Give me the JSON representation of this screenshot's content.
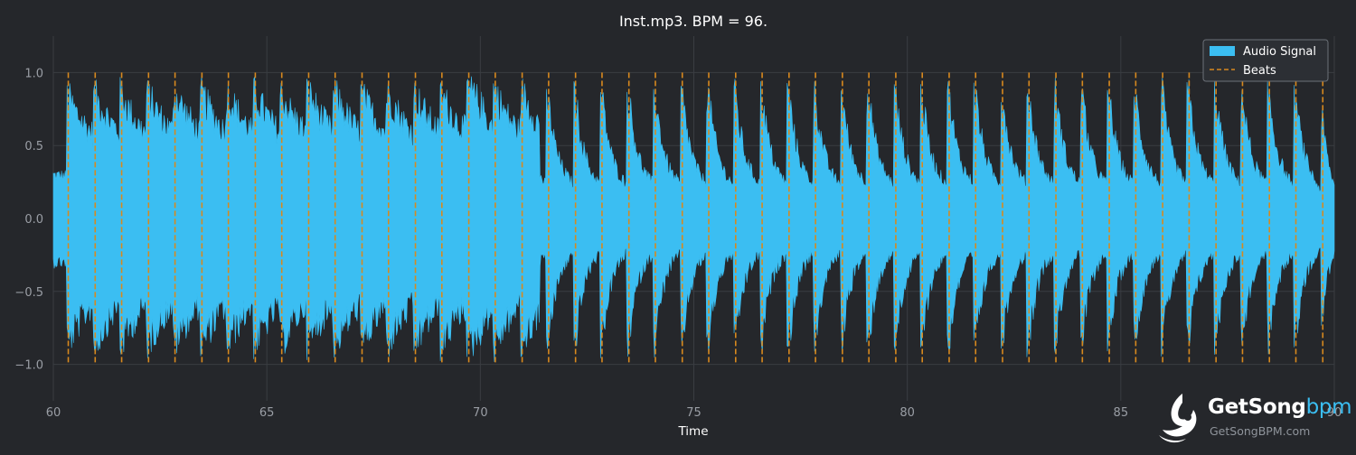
{
  "colors": {
    "background": "#25272b",
    "grid": "#3a3d42",
    "axis_text": "#9a9ea5",
    "signal": "#3bbef2",
    "beats": "#d8891e",
    "title": "#ffffff"
  },
  "watermark": {
    "brand_main": "GetSong",
    "brand_accent": "bpm",
    "sub": "GetSongBPM.com",
    "icon": "music-note-bird-icon"
  },
  "chart_data": {
    "type": "line",
    "title": "Inst.mp3. BPM =  96.",
    "xlabel": "Time",
    "ylabel": "",
    "xlim": [
      60,
      90
    ],
    "ylim": [
      -1.25,
      1.25
    ],
    "xticks": [
      60,
      65,
      70,
      75,
      80,
      85,
      90
    ],
    "xtick_labels": [
      "60",
      "65",
      "70",
      "75",
      "80",
      "85",
      "90"
    ],
    "yticks": [
      1.0,
      0.5,
      0.0,
      -0.5,
      -1.0
    ],
    "ytick_labels": [
      "1.0",
      "0.5",
      "0.0",
      "−0.5",
      "−1.0"
    ],
    "grid": true,
    "legend": {
      "position": "top-right",
      "entries": [
        {
          "label": "Audio Signal",
          "kind": "patch"
        },
        {
          "label": "Beats",
          "kind": "dashed-line"
        }
      ]
    },
    "series": [
      {
        "name": "Audio Signal",
        "kind": "waveform-envelope",
        "x": [
          60.0,
          60.5,
          61.0,
          61.5,
          62.0,
          62.5,
          63.0,
          63.5,
          64.0,
          64.5,
          65.0,
          65.5,
          66.0,
          66.5,
          67.0,
          67.5,
          68.0,
          68.5,
          69.0,
          69.5,
          70.0,
          70.5,
          71.0,
          71.3,
          71.6,
          72.0,
          72.5,
          73.0,
          73.5,
          74.0,
          74.5,
          75.0,
          75.5,
          76.0,
          76.5,
          77.0,
          77.5,
          78.0,
          78.5,
          79.0,
          79.5,
          80.0,
          80.5,
          81.0,
          81.5,
          82.0,
          82.5,
          83.0,
          83.5,
          84.0,
          84.5,
          85.0,
          85.5,
          86.0,
          86.5,
          87.0,
          87.5,
          88.0,
          88.5,
          89.0,
          89.5,
          90.0
        ],
        "upper": [
          0.98,
          0.95,
          0.97,
          0.98,
          0.96,
          0.97,
          0.99,
          0.98,
          0.97,
          0.98,
          0.98,
          0.97,
          0.99,
          0.98,
          0.98,
          0.97,
          0.98,
          0.97,
          0.98,
          0.97,
          1.08,
          0.98,
          0.99,
          0.98,
          0.9,
          0.97,
          0.96,
          0.97,
          0.96,
          0.97,
          0.96,
          0.98,
          0.97,
          0.96,
          0.97,
          0.98,
          0.97,
          0.96,
          0.95,
          0.97,
          0.96,
          0.97,
          0.96,
          0.97,
          0.98,
          0.97,
          0.96,
          0.97,
          0.98,
          0.97,
          0.96,
          0.95,
          0.96,
          0.97,
          0.96,
          0.97,
          0.97,
          0.96,
          0.95,
          0.93,
          0.92,
          0.55
        ],
        "lower": [
          -0.98,
          -0.97,
          -0.99,
          -0.98,
          -0.98,
          -0.97,
          -0.98,
          -0.99,
          -0.98,
          -0.97,
          -0.98,
          -0.98,
          -0.97,
          -0.98,
          -0.99,
          -0.98,
          -0.97,
          -0.98,
          -0.99,
          -0.98,
          -1.06,
          -0.98,
          -0.99,
          -0.97,
          -0.96,
          -0.97,
          -0.96,
          -0.97,
          -0.96,
          -0.97,
          -0.95,
          -0.97,
          -0.96,
          -0.95,
          -0.96,
          -0.97,
          -0.96,
          -0.95,
          -0.94,
          -0.96,
          -0.95,
          -0.96,
          -0.95,
          -0.96,
          -0.97,
          -0.96,
          -0.95,
          -0.96,
          -0.97,
          -0.96,
          -0.95,
          -0.94,
          -0.95,
          -0.96,
          -0.95,
          -0.96,
          -0.96,
          -0.95,
          -0.94,
          -0.92,
          -0.9,
          -0.55
        ]
      },
      {
        "name": "Beats",
        "kind": "vertical-dashed-lines",
        "x": [
          60.35,
          60.98,
          61.6,
          62.23,
          62.85,
          63.48,
          64.1,
          64.73,
          65.35,
          65.98,
          66.6,
          67.23,
          67.85,
          68.48,
          69.1,
          69.73,
          70.35,
          70.98,
          71.6,
          72.23,
          72.85,
          73.48,
          74.1,
          74.73,
          75.35,
          75.98,
          76.6,
          77.23,
          77.85,
          78.48,
          79.1,
          79.73,
          80.35,
          80.98,
          81.6,
          82.23,
          82.85,
          83.48,
          84.1,
          84.73,
          85.35,
          85.98,
          86.6,
          87.23,
          87.85,
          88.48,
          89.1,
          89.73
        ]
      }
    ]
  }
}
